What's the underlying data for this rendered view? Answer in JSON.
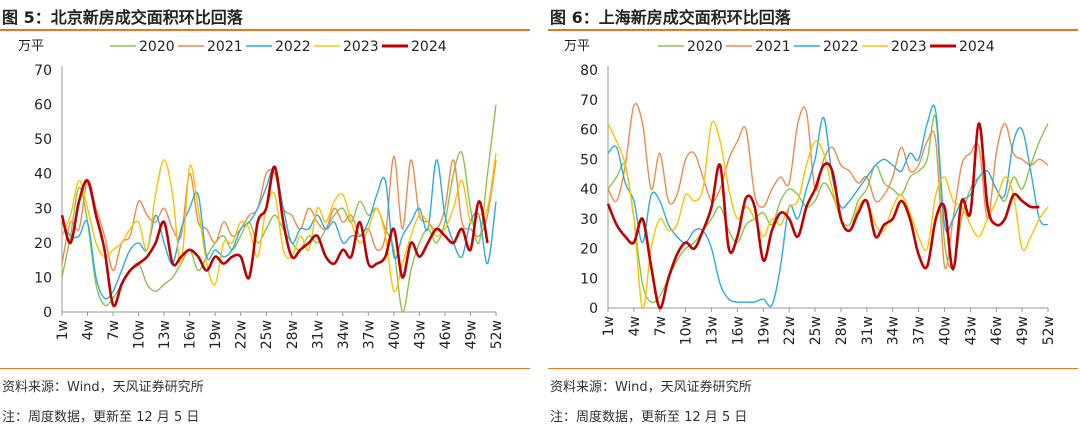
{
  "source_note": "资料来源：Wind，天风证券研究所",
  "comment_note": "注：周度数据，更新至 12 月 5 日",
  "chart_data": [
    {
      "type": "line",
      "title": "图 5：北京新房成交面积环比回落",
      "ylabel": "万平",
      "ylim": [
        0,
        70
      ],
      "yticks": [
        0,
        10,
        20,
        30,
        40,
        50,
        60,
        70
      ],
      "xticks": [
        "1w",
        "4w",
        "7w",
        "10w",
        "13w",
        "16w",
        "19w",
        "22w",
        "25w",
        "28w",
        "31w",
        "34w",
        "37w",
        "40w",
        "43w",
        "46w",
        "49w",
        "52w"
      ],
      "x": [
        1,
        2,
        3,
        4,
        5,
        6,
        7,
        8,
        9,
        10,
        11,
        12,
        13,
        14,
        15,
        16,
        17,
        18,
        19,
        20,
        21,
        22,
        23,
        24,
        25,
        26,
        27,
        28,
        29,
        30,
        31,
        32,
        33,
        34,
        35,
        36,
        37,
        38,
        39,
        40,
        41,
        42,
        43,
        44,
        45,
        46,
        47,
        48,
        49,
        50,
        51,
        52
      ],
      "series": [
        {
          "name": "2020",
          "color": "#8BC34A",
          "values": [
            10,
            22,
            36,
            26,
            8,
            2,
            4,
            8,
            12,
            14,
            8,
            6,
            8,
            10,
            14,
            18,
            12,
            16,
            20,
            22,
            18,
            22,
            26,
            20,
            24,
            28,
            24,
            20,
            18,
            22,
            20,
            24,
            28,
            30,
            26,
            32,
            28,
            30,
            24,
            18,
            0,
            12,
            20,
            24,
            20,
            26,
            40,
            46,
            30,
            20,
            40,
            60
          ]
        },
        {
          "name": "2021",
          "color": "#EE8A4B",
          "values": [
            14,
            26,
            24,
            38,
            30,
            22,
            12,
            20,
            22,
            32,
            28,
            26,
            30,
            24,
            22,
            40,
            26,
            24,
            20,
            26,
            22,
            24,
            28,
            30,
            40,
            40,
            30,
            28,
            24,
            30,
            26,
            24,
            30,
            26,
            28,
            22,
            24,
            18,
            22,
            45,
            24,
            44,
            28,
            26,
            24,
            30,
            44,
            26,
            24,
            22,
            28,
            44
          ]
        },
        {
          "name": "2022",
          "color": "#29ABE2",
          "values": [
            26,
            22,
            22,
            26,
            10,
            4,
            6,
            12,
            18,
            20,
            18,
            28,
            20,
            14,
            24,
            30,
            34,
            16,
            18,
            16,
            18,
            24,
            26,
            30,
            36,
            42,
            30,
            20,
            24,
            24,
            28,
            24,
            26,
            20,
            22,
            22,
            26,
            34,
            38,
            16,
            22,
            26,
            30,
            24,
            44,
            28,
            20,
            16,
            26,
            28,
            14,
            32
          ]
        },
        {
          "name": "2023",
          "color": "#FFC000",
          "values": [
            22,
            28,
            38,
            30,
            20,
            16,
            18,
            20,
            24,
            26,
            18,
            34,
            44,
            34,
            14,
            42,
            30,
            14,
            8,
            20,
            20,
            26,
            24,
            16,
            30,
            34,
            18,
            16,
            22,
            18,
            30,
            26,
            32,
            34,
            26,
            20,
            24,
            30,
            22,
            6,
            14,
            22,
            28,
            26,
            22,
            24,
            30,
            38,
            26,
            28,
            30,
            46
          ]
        },
        {
          "name": "2024",
          "color": "#C00000",
          "values": [
            28,
            20,
            32,
            38,
            28,
            18,
            2,
            8,
            12,
            14,
            16,
            20,
            26,
            14,
            16,
            18,
            16,
            12,
            16,
            14,
            16,
            16,
            10,
            26,
            30,
            42,
            26,
            16,
            18,
            20,
            22,
            16,
            14,
            18,
            16,
            26,
            14,
            14,
            16,
            24,
            10,
            20,
            16,
            20,
            24,
            22,
            20,
            24,
            18,
            32,
            20,
            null
          ]
        }
      ]
    },
    {
      "type": "line",
      "title": "图 6：上海新房成交面积环比回落",
      "ylabel": "万平",
      "ylim": [
        0,
        80
      ],
      "yticks": [
        0,
        10,
        20,
        30,
        40,
        50,
        60,
        70,
        80
      ],
      "xticks": [
        "1w",
        "4w",
        "7w",
        "10w",
        "13w",
        "16w",
        "19w",
        "22w",
        "25w",
        "28w",
        "31w",
        "34w",
        "37w",
        "40w",
        "43w",
        "46w",
        "49w",
        "52w"
      ],
      "x": [
        1,
        2,
        3,
        4,
        5,
        6,
        7,
        8,
        9,
        10,
        11,
        12,
        13,
        14,
        15,
        16,
        17,
        18,
        19,
        20,
        21,
        22,
        23,
        24,
        25,
        26,
        27,
        28,
        29,
        30,
        31,
        32,
        33,
        34,
        35,
        36,
        37,
        38,
        39,
        40,
        41,
        42,
        43,
        44,
        45,
        46,
        47,
        48,
        49,
        50,
        51,
        52
      ],
      "series": [
        {
          "name": "2020",
          "color": "#8BC34A",
          "values": [
            40,
            44,
            48,
            30,
            8,
            2,
            4,
            10,
            16,
            20,
            22,
            26,
            30,
            34,
            26,
            22,
            28,
            30,
            32,
            28,
            36,
            40,
            38,
            34,
            36,
            42,
            38,
            30,
            28,
            36,
            40,
            48,
            42,
            40,
            38,
            44,
            46,
            50,
            64,
            22,
            14,
            30,
            40,
            44,
            46,
            40,
            36,
            44,
            40,
            48,
            56,
            62
          ]
        },
        {
          "name": "2021",
          "color": "#EE8A4B",
          "values": [
            40,
            36,
            48,
            68,
            62,
            40,
            52,
            36,
            38,
            50,
            52,
            44,
            36,
            40,
            50,
            56,
            60,
            38,
            34,
            40,
            44,
            42,
            62,
            66,
            40,
            50,
            54,
            48,
            46,
            42,
            44,
            36,
            38,
            44,
            54,
            46,
            48,
            56,
            56,
            14,
            30,
            48,
            52,
            54,
            30,
            52,
            62,
            52,
            50,
            48,
            50,
            48
          ]
        },
        {
          "name": "2022",
          "color": "#29ABE2",
          "values": [
            52,
            54,
            42,
            36,
            22,
            38,
            36,
            28,
            24,
            22,
            26,
            26,
            20,
            8,
            3,
            2,
            2,
            2,
            3,
            1,
            14,
            34,
            30,
            40,
            50,
            64,
            44,
            34,
            36,
            40,
            44,
            48,
            50,
            48,
            46,
            52,
            50,
            62,
            66,
            28,
            30,
            36,
            38,
            44,
            46,
            40,
            38,
            56,
            60,
            46,
            30,
            28
          ]
        },
        {
          "name": "2023",
          "color": "#FFC000",
          "values": [
            62,
            56,
            48,
            30,
            0,
            20,
            30,
            26,
            28,
            38,
            36,
            40,
            62,
            56,
            40,
            30,
            34,
            30,
            24,
            30,
            28,
            34,
            36,
            48,
            56,
            52,
            40,
            30,
            26,
            34,
            36,
            28,
            26,
            34,
            38,
            32,
            24,
            20,
            38,
            44,
            36,
            34,
            28,
            24,
            30,
            36,
            44,
            38,
            20,
            24,
            30,
            34
          ]
        },
        {
          "name": "2024",
          "color": "#C00000",
          "values": [
            35,
            28,
            24,
            22,
            30,
            14,
            0,
            10,
            18,
            22,
            20,
            26,
            34,
            48,
            20,
            24,
            37,
            34,
            16,
            26,
            32,
            30,
            24,
            34,
            40,
            48,
            46,
            30,
            26,
            32,
            36,
            24,
            28,
            30,
            36,
            30,
            18,
            14,
            30,
            34,
            13,
            36,
            32,
            62,
            34,
            28,
            30,
            38,
            36,
            34,
            34,
            null
          ]
        }
      ]
    }
  ]
}
